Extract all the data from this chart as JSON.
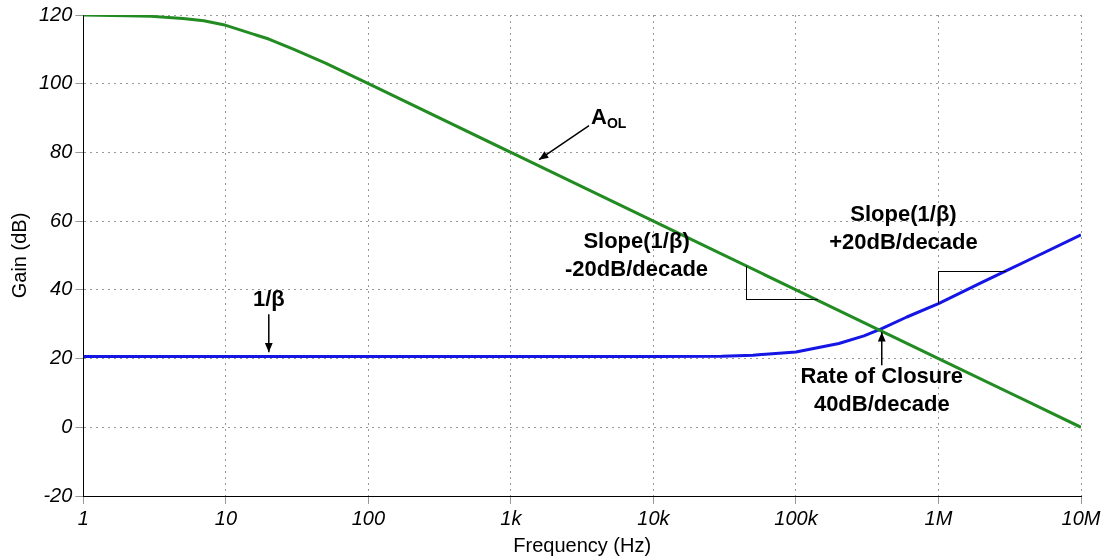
{
  "chart_data": {
    "type": "line",
    "xlabel": "Frequency (Hz)",
    "ylabel": "Gain (dB)",
    "log": "x",
    "grid": true,
    "marker": "none",
    "line_style": "solid",
    "xlim": [
      1,
      10000000
    ],
    "ylim": [
      -20,
      120
    ],
    "xticks": [
      1,
      10,
      100,
      {
        "value": 1000,
        "label": "1k"
      },
      {
        "value": 10000,
        "label": "10k"
      },
      {
        "value": 100000,
        "label": "100k"
      },
      {
        "value": 1000000,
        "label": "1M"
      },
      {
        "value": 10000000,
        "label": "10M"
      }
    ],
    "yticks": [
      -20,
      0,
      20,
      40,
      60,
      80,
      100,
      120
    ],
    "series": [
      {
        "color": "#228b22",
        "x": [
          1,
          2,
          3,
          5,
          7,
          10,
          20,
          30,
          50,
          100,
          1000,
          10000,
          100000,
          1000000,
          10000000
        ],
        "values": [
          120,
          119.8,
          119.6,
          119,
          118.3,
          117,
          113,
          110,
          106,
          100,
          80,
          60,
          40,
          20,
          0
        ]
      },
      {
        "color": "#1515e6",
        "x": [
          1,
          10000,
          30000,
          50000,
          100000,
          200000,
          300000,
          400000,
          600000,
          1000000,
          2000000,
          3000000,
          5000000,
          10000000
        ],
        "values": [
          20.6,
          20.6,
          20.7,
          21,
          21.9,
          24.4,
          26.6,
          28.7,
          32.1,
          36,
          42.1,
          45.6,
          50,
          56
        ]
      }
    ],
    "annotations": [
      {
        "text": "A$_{OL}$",
        "x": 1500,
        "y": 77
      },
      {
        "text": "1/β",
        "x": 20,
        "y": 21
      },
      {
        "text": "Slope(1/β)\n-20dB/decade",
        "x": 45000,
        "y": 47
      },
      {
        "text": "Slope(1/β)\n+20dB/decade",
        "x": 1000000,
        "y": 36
      },
      {
        "text": "Rate of Closure\n40dB/decade",
        "x": 400000,
        "y": 28.5
      }
    ]
  }
}
